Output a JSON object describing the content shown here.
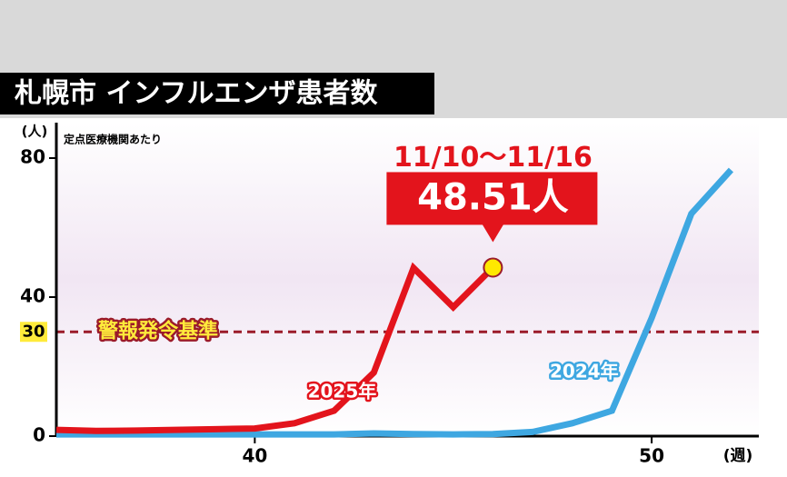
{
  "chart_data": {
    "type": "line",
    "title": "札幌市 インフルエンザ患者数",
    "subtitle": "定点医療機関あたり",
    "y_label": "(人)",
    "x_label": "(週)",
    "x": [
      35,
      36,
      37,
      38,
      39,
      40,
      41,
      42,
      43,
      44,
      45,
      46,
      47,
      48,
      49,
      50,
      51,
      52
    ],
    "series": [
      {
        "name": "2025年",
        "color": "#e3141c",
        "values": [
          1.8,
          1.5,
          1.6,
          1.8,
          2.0,
          2.2,
          3.7,
          7.3,
          18.3,
          48.4,
          37.1,
          48.51,
          null,
          null,
          null,
          null,
          null,
          null
        ],
        "value_labels": [
          null,
          null,
          null,
          null,
          null,
          null,
          null,
          null,
          null,
          null,
          null,
          "48.51人",
          null,
          null,
          null,
          null,
          null,
          null
        ]
      },
      {
        "name": "2024年",
        "color": "#3ea7e1",
        "values": [
          0.5,
          0.5,
          0.5,
          0.5,
          0.5,
          0.5,
          0.5,
          0.5,
          0.8,
          0.6,
          0.5,
          0.6,
          1.2,
          3.7,
          7.3,
          34,
          64,
          76.6
        ]
      }
    ],
    "annotation": "11/10〜11/16",
    "threshold": {
      "value": 30,
      "label": "警報発令基準"
    },
    "xlim": [
      35,
      52.7
    ],
    "ylim": [
      0,
      80
    ],
    "xticks": [
      40,
      50
    ],
    "yticks": [
      0,
      40,
      80
    ]
  }
}
